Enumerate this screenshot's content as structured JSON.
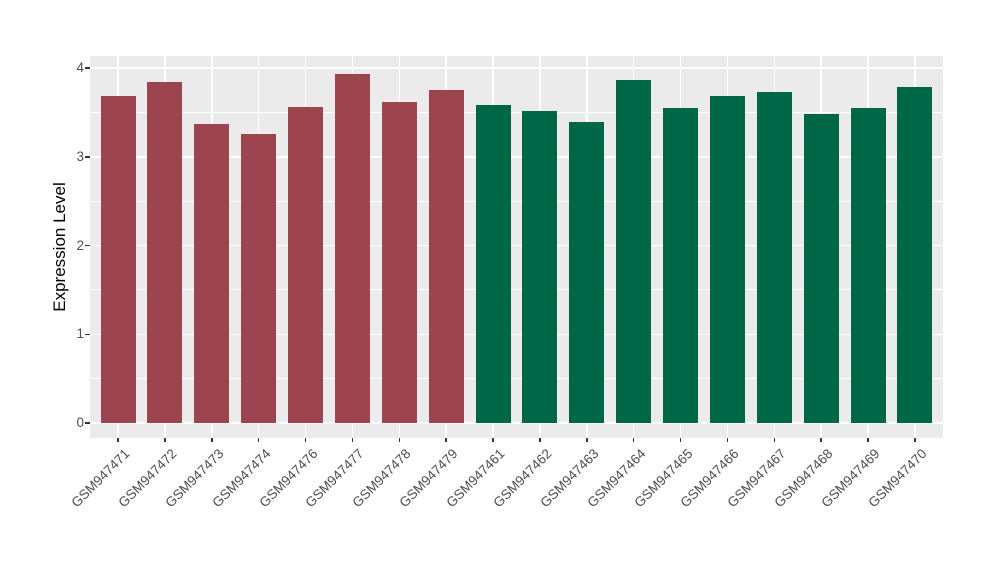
{
  "figure": {
    "background": "#FFFFFF",
    "panel_background": "#EBEBEB",
    "gridline_color": "#FFFFFF"
  },
  "chart_data": {
    "type": "bar",
    "title": "",
    "xlabel": "",
    "ylabel": "Expression Level",
    "ylim": [
      0,
      4.13
    ],
    "yticks": [
      0,
      1,
      2,
      3,
      4
    ],
    "grid": "major and minor horizontal white lines, vertical white lines at category centers",
    "legend": "none",
    "bar_colors": {
      "maroon": "#9C4450",
      "green": "#006746"
    },
    "bars": [
      {
        "label": "GSM947471",
        "value": 3.69,
        "color": "maroon"
      },
      {
        "label": "GSM947472",
        "value": 3.84,
        "color": "maroon"
      },
      {
        "label": "GSM947473",
        "value": 3.37,
        "color": "maroon"
      },
      {
        "label": "GSM947474",
        "value": 3.26,
        "color": "maroon"
      },
      {
        "label": "GSM947476",
        "value": 3.56,
        "color": "maroon"
      },
      {
        "label": "GSM947477",
        "value": 3.93,
        "color": "maroon"
      },
      {
        "label": "GSM947478",
        "value": 3.62,
        "color": "maroon"
      },
      {
        "label": "GSM947479",
        "value": 3.75,
        "color": "maroon"
      },
      {
        "label": "GSM947461",
        "value": 3.58,
        "color": "green"
      },
      {
        "label": "GSM947462",
        "value": 3.51,
        "color": "green"
      },
      {
        "label": "GSM947463",
        "value": 3.39,
        "color": "green"
      },
      {
        "label": "GSM947464",
        "value": 3.86,
        "color": "green"
      },
      {
        "label": "GSM947465",
        "value": 3.55,
        "color": "green"
      },
      {
        "label": "GSM947466",
        "value": 3.68,
        "color": "green"
      },
      {
        "label": "GSM947467",
        "value": 3.73,
        "color": "green"
      },
      {
        "label": "GSM947468",
        "value": 3.48,
        "color": "green"
      },
      {
        "label": "GSM947469",
        "value": 3.55,
        "color": "green"
      },
      {
        "label": "GSM947470",
        "value": 3.79,
        "color": "green"
      }
    ]
  }
}
